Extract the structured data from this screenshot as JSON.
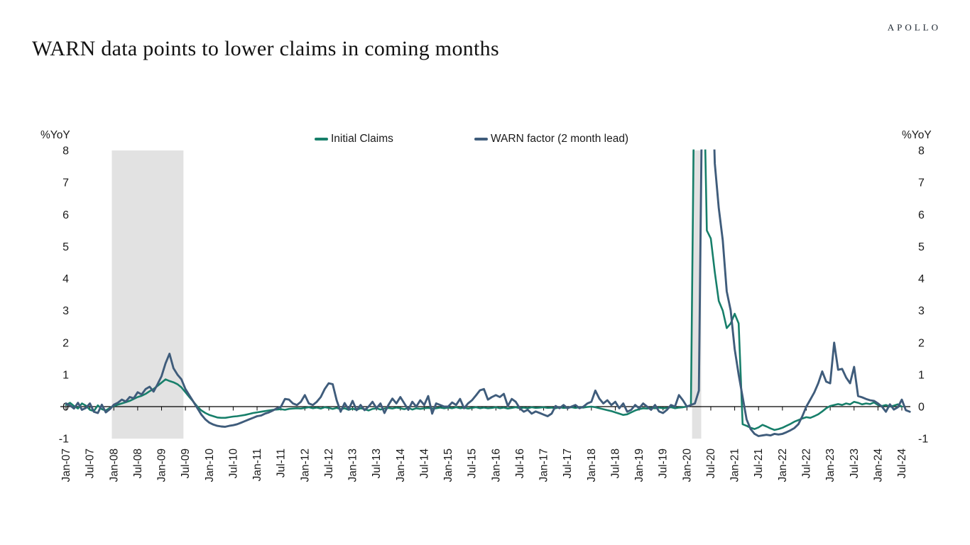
{
  "header": {
    "logo": "APOLLO",
    "title": "WARN data points to lower claims in coming months"
  },
  "chart_data": {
    "type": "line",
    "title": "WARN data points to lower claims in coming months",
    "y_axis_label_left": "%YoY",
    "y_axis_label_right": "%YoY",
    "y_ticks": [
      8,
      7,
      6,
      5,
      4,
      3,
      2,
      1,
      0,
      -1
    ],
    "ylim": [
      -1,
      8
    ],
    "values_above_ylim_are_clipped": true,
    "grid": false,
    "legend_position": "top-center",
    "x_start": "Jan-07",
    "x_months_per_tick": 6,
    "x_tick_labels": [
      "Jan-07",
      "Jul-07",
      "Jan-08",
      "Jul-08",
      "Jan-09",
      "Jul-09",
      "Jan-10",
      "Jul-10",
      "Jan-11",
      "Jul-11",
      "Jan-12",
      "Jul-12",
      "Jan-13",
      "Jul-13",
      "Jan-14",
      "Jul-14",
      "Jan-15",
      "Jul-15",
      "Jan-16",
      "Jul-16",
      "Jan-17",
      "Jul-17",
      "Jan-18",
      "Jul-18",
      "Jan-19",
      "Jul-19",
      "Jan-20",
      "Jul-20",
      "Jan-21",
      "Jul-21",
      "Jan-22",
      "Jul-22",
      "Jan-23",
      "Jul-23",
      "Jan-24",
      "Jul-24"
    ],
    "recession_bands": [
      {
        "label": "2008-09 recession",
        "start_month_index": 11.5,
        "end_month_index": 29.5
      },
      {
        "label": "2020 recession",
        "start_month_index": 157.3,
        "end_month_index": 159.6
      }
    ],
    "band_color": "#e2e2e2",
    "axis_color": "#000000",
    "text_color": "#1a1a1a",
    "series": [
      {
        "name": "Initial Claims",
        "color": "#177f6a",
        "start_month_index": 0,
        "values": [
          0.05,
          0.12,
          0.02,
          -0.06,
          0.1,
          0.03,
          -0.1,
          -0.14,
          0.04,
          -0.08,
          -0.12,
          -0.04,
          0.02,
          0.06,
          0.1,
          0.14,
          0.18,
          0.24,
          0.3,
          0.34,
          0.4,
          0.48,
          0.55,
          0.65,
          0.75,
          0.85,
          0.8,
          0.76,
          0.7,
          0.6,
          0.45,
          0.3,
          0.15,
          0.0,
          -0.12,
          -0.2,
          -0.26,
          -0.3,
          -0.34,
          -0.35,
          -0.35,
          -0.33,
          -0.31,
          -0.3,
          -0.28,
          -0.26,
          -0.23,
          -0.2,
          -0.18,
          -0.16,
          -0.14,
          -0.12,
          -0.1,
          -0.09,
          -0.08,
          -0.1,
          -0.07,
          -0.06,
          -0.05,
          -0.06,
          -0.04,
          -0.02,
          -0.05,
          -0.03,
          -0.06,
          -0.02,
          -0.04,
          -0.07,
          -0.04,
          -0.08,
          -0.05,
          -0.1,
          -0.06,
          -0.1,
          -0.05,
          -0.08,
          -0.12,
          -0.07,
          -0.05,
          -0.09,
          -0.06,
          -0.04,
          -0.06,
          -0.03,
          -0.05,
          -0.08,
          -0.04,
          -0.09,
          -0.05,
          -0.07,
          -0.05,
          -0.04,
          -0.06,
          -0.05,
          -0.03,
          -0.05,
          -0.03,
          -0.05,
          -0.02,
          -0.05,
          -0.03,
          -0.06,
          -0.04,
          -0.02,
          -0.05,
          -0.03,
          -0.05,
          -0.04,
          -0.02,
          -0.05,
          -0.03,
          -0.06,
          -0.04,
          -0.02,
          -0.05,
          -0.03,
          -0.05,
          -0.02,
          -0.04,
          -0.03,
          -0.02,
          -0.04,
          -0.03,
          -0.05,
          -0.02,
          -0.04,
          -0.03,
          -0.02,
          -0.04,
          -0.02,
          -0.03,
          -0.01,
          0.0,
          -0.02,
          -0.05,
          -0.08,
          -0.11,
          -0.14,
          -0.18,
          -0.22,
          -0.26,
          -0.24,
          -0.18,
          -0.12,
          -0.08,
          -0.05,
          -0.06,
          -0.04,
          -0.05,
          -0.03,
          -0.05,
          -0.04,
          -0.02,
          -0.05,
          -0.03,
          -0.02,
          0.0,
          0.05,
          12,
          12,
          12,
          5.5,
          5.25,
          4.2,
          3.3,
          3.0,
          2.45,
          2.6,
          2.9,
          2.6,
          -0.55,
          -0.6,
          -0.66,
          -0.7,
          -0.65,
          -0.57,
          -0.62,
          -0.68,
          -0.73,
          -0.7,
          -0.66,
          -0.6,
          -0.54,
          -0.47,
          -0.42,
          -0.37,
          -0.33,
          -0.35,
          -0.3,
          -0.24,
          -0.15,
          -0.05,
          0.02,
          0.05,
          0.08,
          0.05,
          0.1,
          0.07,
          0.15,
          0.12,
          0.07,
          0.1,
          0.08,
          0.13,
          0.05,
          0.02,
          0.05,
          0.0,
          0.03,
          0.07,
          0.0
        ]
      },
      {
        "name": "WARN factor (2 month lead)",
        "color": "#3f5c7b",
        "start_month_index": 0,
        "values": [
          0.1,
          0.04,
          -0.06,
          0.12,
          -0.1,
          -0.04,
          0.1,
          -0.16,
          -0.2,
          0.06,
          -0.18,
          -0.08,
          0.06,
          0.12,
          0.22,
          0.16,
          0.3,
          0.26,
          0.45,
          0.38,
          0.55,
          0.62,
          0.47,
          0.7,
          0.95,
          1.35,
          1.65,
          1.2,
          1.0,
          0.85,
          0.55,
          0.35,
          0.15,
          -0.05,
          -0.25,
          -0.4,
          -0.5,
          -0.56,
          -0.6,
          -0.62,
          -0.63,
          -0.6,
          -0.58,
          -0.55,
          -0.5,
          -0.45,
          -0.4,
          -0.35,
          -0.3,
          -0.28,
          -0.22,
          -0.18,
          -0.12,
          -0.05,
          0.0,
          0.24,
          0.22,
          0.1,
          0.05,
          0.15,
          0.36,
          0.1,
          0.05,
          0.15,
          0.3,
          0.55,
          0.73,
          0.7,
          0.2,
          -0.16,
          0.11,
          -0.09,
          0.18,
          -0.11,
          0.05,
          -0.11,
          0.0,
          0.15,
          -0.05,
          0.1,
          -0.2,
          0.05,
          0.25,
          0.1,
          0.3,
          0.1,
          -0.1,
          0.15,
          0.0,
          0.2,
          0.05,
          0.33,
          -0.22,
          0.1,
          0.05,
          0.0,
          0.0,
          0.13,
          0.05,
          0.24,
          -0.05,
          0.1,
          0.2,
          0.35,
          0.51,
          0.55,
          0.22,
          0.3,
          0.36,
          0.3,
          0.4,
          0.02,
          0.24,
          0.15,
          -0.05,
          -0.16,
          -0.1,
          -0.22,
          -0.15,
          -0.2,
          -0.25,
          -0.3,
          -0.22,
          0.02,
          -0.05,
          0.05,
          -0.05,
          0.0,
          0.05,
          -0.05,
          0.0,
          0.1,
          0.15,
          0.5,
          0.25,
          0.1,
          0.2,
          0.05,
          0.15,
          -0.05,
          0.1,
          -0.16,
          -0.1,
          0.05,
          -0.05,
          0.1,
          0.0,
          -0.1,
          0.05,
          -0.15,
          -0.2,
          -0.1,
          0.05,
          0.0,
          0.36,
          0.2,
          0.0,
          0.05,
          0.1,
          0.5,
          12,
          12,
          12,
          7.6,
          6.2,
          5.2,
          3.6,
          3.0,
          1.8,
          1.0,
          0.3,
          -0.4,
          -0.7,
          -0.85,
          -0.92,
          -0.9,
          -0.88,
          -0.9,
          -0.85,
          -0.87,
          -0.85,
          -0.8,
          -0.74,
          -0.67,
          -0.55,
          -0.3,
          0.0,
          0.22,
          0.44,
          0.73,
          1.1,
          0.78,
          0.73,
          2.0,
          1.15,
          1.18,
          0.91,
          0.73,
          1.24,
          0.33,
          0.29,
          0.24,
          0.2,
          0.18,
          0.1,
          0.0,
          -0.16,
          0.07,
          -0.09,
          -0.02,
          0.22,
          -0.11,
          -0.16
        ]
      }
    ]
  }
}
